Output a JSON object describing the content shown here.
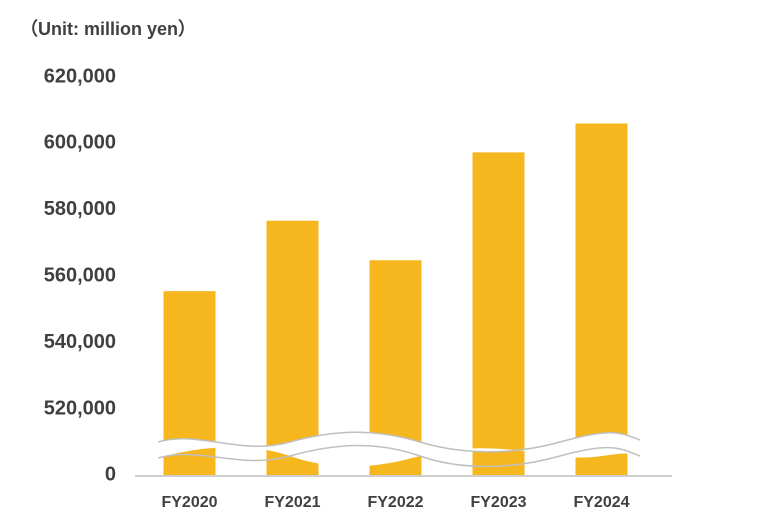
{
  "chart_data": {
    "type": "bar",
    "subtitle": "（Unit: million yen）",
    "categories": [
      "FY2020",
      "FY2021",
      "FY2022",
      "FY2023",
      "FY2024"
    ],
    "values": [
      555500,
      576700,
      564800,
      597300,
      606000
    ],
    "color": "#f6b61e",
    "ylim": [
      0,
      620000
    ],
    "axis_break": [
      0,
      520000
    ],
    "yticks": [
      0,
      {
        "value": 520000,
        "label": "520,000"
      },
      {
        "value": 540000,
        "label": "540,000"
      },
      {
        "value": 560000,
        "label": "560,000"
      },
      {
        "value": 580000,
        "label": "580,000"
      },
      {
        "value": 600000,
        "label": "600,000"
      },
      {
        "value": 620000,
        "label": "620,000"
      }
    ],
    "grid": false
  }
}
